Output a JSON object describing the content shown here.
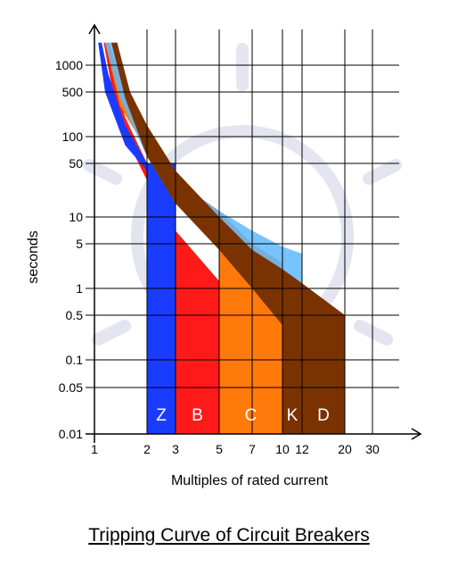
{
  "title": "Tripping Curve of Circuit Breakers",
  "chart_data": {
    "type": "area",
    "title": "Tripping Curve of Circuit Breakers",
    "xlabel": "Multiples of rated current",
    "ylabel": "seconds",
    "x_scale": "log",
    "y_scale": "log",
    "xlim": [
      1,
      40
    ],
    "ylim": [
      0.01,
      3000
    ],
    "grid": true,
    "x_ticks": [
      1,
      2,
      3,
      5,
      7,
      10,
      12,
      20,
      30
    ],
    "x_tick_labels": [
      "1",
      "2",
      "3",
      "5",
      "7",
      "10",
      "12",
      "20",
      "30"
    ],
    "y_ticks": [
      0.01,
      0.05,
      0.1,
      0.5,
      1,
      5,
      10,
      50,
      100,
      500,
      1000
    ],
    "y_tick_labels": [
      "0.01",
      "0.05",
      "0.1",
      "0.5",
      "1",
      "5",
      "10",
      "50",
      "100",
      "500",
      "1000"
    ],
    "series": [
      {
        "name": "B",
        "color": "#ff1a1a",
        "upper": [
          [
            1.15,
            2000
          ],
          [
            1.3,
            700
          ],
          [
            1.5,
            200
          ],
          [
            2,
            50
          ],
          [
            3,
            7
          ],
          [
            5,
            1.3
          ],
          [
            5,
            1.3
          ]
        ],
        "lower": [
          [
            1.13,
            2000
          ],
          [
            1.25,
            600
          ],
          [
            1.5,
            100
          ],
          [
            2,
            30
          ],
          [
            3,
            5
          ],
          [
            3,
            5
          ]
        ],
        "drop": [
          3,
          5
        ]
      },
      {
        "name": "C",
        "color": "#ff7a0a",
        "upper": [
          [
            1.22,
            2000
          ],
          [
            1.5,
            400
          ],
          [
            2,
            100
          ],
          [
            3,
            30
          ],
          [
            5,
            12
          ],
          [
            7,
            5
          ],
          [
            10,
            2.5
          ],
          [
            10,
            2.5
          ]
        ],
        "lower": [
          [
            1.15,
            2000
          ],
          [
            1.4,
            300
          ],
          [
            2,
            70
          ],
          [
            3,
            20
          ],
          [
            5,
            5
          ],
          [
            5,
            5
          ]
        ],
        "drop": [
          5,
          10
        ]
      },
      {
        "name": "Z",
        "color": "#1a3cff",
        "upper": [
          [
            1.1,
            2000
          ],
          [
            1.2,
            800
          ],
          [
            1.5,
            150
          ],
          [
            2,
            50
          ]
        ],
        "lower": [
          [
            1.05,
            2000
          ],
          [
            1.15,
            500
          ],
          [
            1.5,
            80
          ],
          [
            2,
            40
          ]
        ],
        "drop": [
          2,
          3
        ]
      },
      {
        "name": "K",
        "color": "#5fb8ff",
        "upper": [
          [
            1.25,
            2000
          ],
          [
            1.5,
            600
          ],
          [
            2,
            120
          ],
          [
            3,
            30
          ],
          [
            5,
            12
          ],
          [
            7,
            7
          ],
          [
            10,
            4.5
          ],
          [
            12,
            3.5
          ]
        ],
        "lower": [
          [
            1.15,
            2000
          ],
          [
            1.4,
            400
          ],
          [
            2,
            60
          ],
          [
            3,
            15
          ],
          [
            5,
            5
          ],
          [
            10,
            1
          ],
          [
            12,
            1
          ]
        ],
        "drop": [
          10,
          12
        ]
      },
      {
        "name": "D",
        "color": "#7a3300",
        "upper": [
          [
            1.35,
            2000
          ],
          [
            1.6,
            500
          ],
          [
            2,
            150
          ],
          [
            3,
            40
          ],
          [
            5,
            10
          ],
          [
            7,
            4
          ],
          [
            10,
            2
          ],
          [
            12,
            1.2
          ],
          [
            20,
            0.5
          ]
        ],
        "lower": [
          [
            1.25,
            2000
          ],
          [
            1.5,
            400
          ],
          [
            2,
            60
          ],
          [
            3,
            15
          ],
          [
            5,
            4
          ],
          [
            7,
            1
          ],
          [
            10,
            0.35
          ],
          [
            10,
            0.35
          ]
        ],
        "drop": [
          10,
          20
        ]
      }
    ],
    "band_labels": [
      "Z",
      "B",
      "C",
      "K",
      "D"
    ]
  }
}
